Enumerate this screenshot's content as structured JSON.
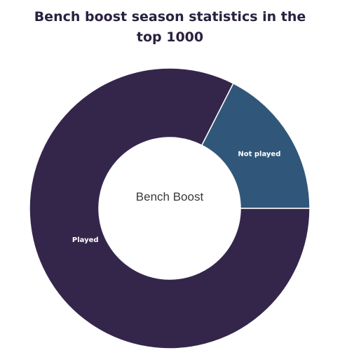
{
  "chart_data": {
    "type": "pie",
    "title": "Bench boost season statistics in the top 1000",
    "center_label": "Bench Boost",
    "slices": [
      {
        "label": "Not played",
        "value": 17.5,
        "color": "#30577a"
      },
      {
        "label": "Played",
        "value": 82.5,
        "color": "#34264b"
      }
    ]
  }
}
